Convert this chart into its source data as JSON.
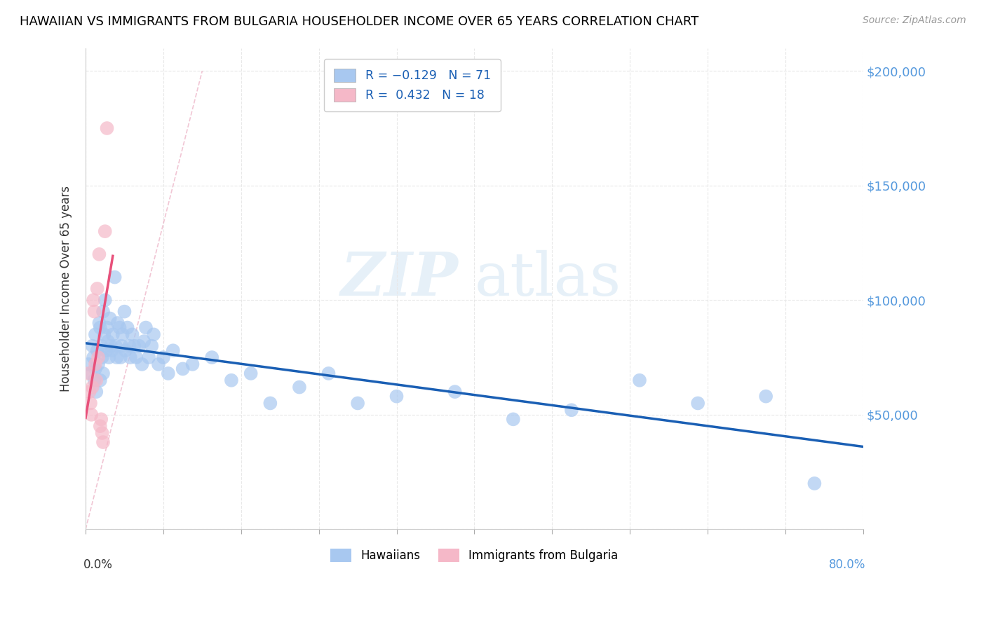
{
  "title": "HAWAIIAN VS IMMIGRANTS FROM BULGARIA HOUSEHOLDER INCOME OVER 65 YEARS CORRELATION CHART",
  "source": "Source: ZipAtlas.com",
  "ylabel": "Householder Income Over 65 years",
  "y_min": 0,
  "y_max": 210000,
  "x_min": 0.0,
  "x_max": 0.8,
  "watermark": "ZIPatlas",
  "hawaiian_color": "#a8c8f0",
  "bulgaria_color": "#f5b8c8",
  "trend_hawaii_color": "#1a5fb4",
  "trend_bulgaria_color": "#e8507a",
  "trend_diag_color": "#d0b0b8",
  "hawaiian_x": [
    0.003,
    0.005,
    0.007,
    0.008,
    0.009,
    0.01,
    0.01,
    0.011,
    0.012,
    0.013,
    0.014,
    0.015,
    0.015,
    0.016,
    0.017,
    0.018,
    0.018,
    0.019,
    0.02,
    0.021,
    0.022,
    0.023,
    0.024,
    0.025,
    0.026,
    0.027,
    0.028,
    0.03,
    0.031,
    0.032,
    0.033,
    0.035,
    0.036,
    0.037,
    0.038,
    0.04,
    0.041,
    0.043,
    0.045,
    0.046,
    0.048,
    0.05,
    0.052,
    0.055,
    0.058,
    0.06,
    0.062,
    0.065,
    0.068,
    0.07,
    0.075,
    0.08,
    0.085,
    0.09,
    0.1,
    0.11,
    0.13,
    0.15,
    0.17,
    0.19,
    0.22,
    0.25,
    0.28,
    0.32,
    0.38,
    0.44,
    0.5,
    0.57,
    0.63,
    0.7,
    0.75
  ],
  "hawaiian_y": [
    72000,
    68000,
    80000,
    75000,
    65000,
    70000,
    85000,
    60000,
    78000,
    72000,
    90000,
    88000,
    65000,
    80000,
    75000,
    95000,
    68000,
    85000,
    100000,
    78000,
    88000,
    82000,
    75000,
    92000,
    80000,
    78000,
    85000,
    110000,
    80000,
    75000,
    90000,
    88000,
    75000,
    80000,
    85000,
    95000,
    78000,
    88000,
    80000,
    75000,
    85000,
    80000,
    75000,
    80000,
    72000,
    82000,
    88000,
    75000,
    80000,
    85000,
    72000,
    75000,
    68000,
    78000,
    70000,
    72000,
    75000,
    65000,
    68000,
    55000,
    62000,
    68000,
    55000,
    58000,
    60000,
    48000,
    52000,
    65000,
    55000,
    58000,
    20000
  ],
  "bulgaria_x": [
    0.003,
    0.004,
    0.005,
    0.006,
    0.007,
    0.008,
    0.009,
    0.01,
    0.011,
    0.012,
    0.013,
    0.014,
    0.015,
    0.016,
    0.017,
    0.018,
    0.02,
    0.022
  ],
  "bulgaria_y": [
    68000,
    60000,
    55000,
    50000,
    62000,
    100000,
    95000,
    72000,
    65000,
    105000,
    75000,
    120000,
    45000,
    48000,
    42000,
    38000,
    130000,
    175000
  ]
}
